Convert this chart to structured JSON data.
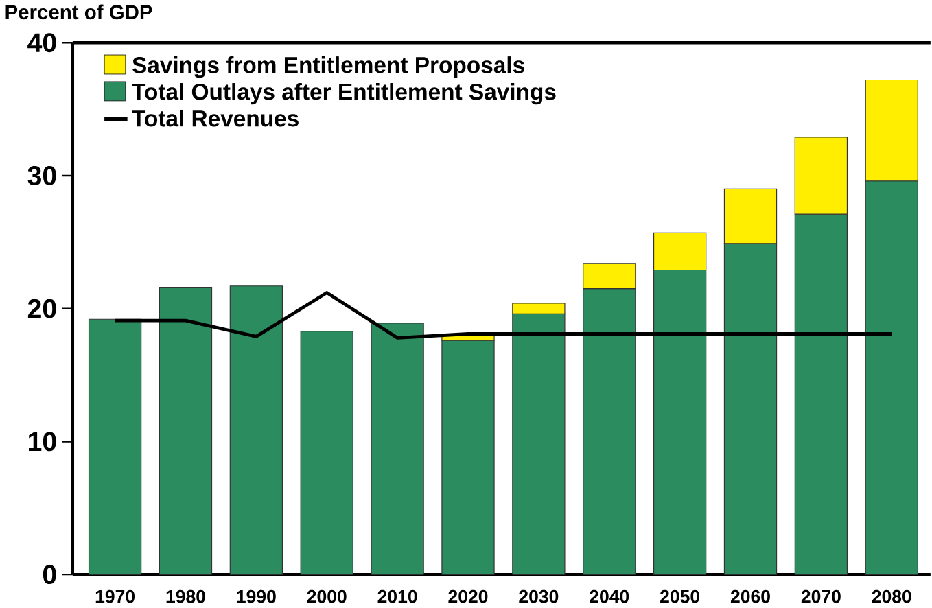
{
  "chart_data": {
    "type": "bar",
    "stacked": true,
    "ylabel": "Percent of GDP",
    "categories": [
      "1970",
      "1980",
      "1990",
      "2000",
      "2010",
      "2020",
      "2030",
      "2040",
      "2050",
      "2060",
      "2070",
      "2080"
    ],
    "series": [
      {
        "name": "Total Outlays after  Entitlement Savings",
        "color": "#2b8c5f",
        "values": [
          19.2,
          21.6,
          21.7,
          18.3,
          18.9,
          17.6,
          19.6,
          21.5,
          22.9,
          24.9,
          27.1,
          29.6
        ]
      },
      {
        "name": "Savings from Entitlement Proposals",
        "color": "#ffee00",
        "values": [
          null,
          null,
          null,
          null,
          null,
          0.5,
          0.8,
          1.9,
          2.8,
          4.1,
          5.8,
          7.6
        ]
      },
      {
        "name": "Total Revenues",
        "type": "line",
        "color": "#000000",
        "values": [
          19.1,
          19.1,
          17.9,
          21.2,
          17.8,
          18.1,
          18.1,
          18.1,
          18.1,
          18.1,
          18.1,
          18.1
        ]
      }
    ],
    "ylim": [
      0,
      40
    ],
    "yticks": [
      0,
      10,
      20,
      30,
      40
    ],
    "legend": "top left",
    "grid": false
  }
}
